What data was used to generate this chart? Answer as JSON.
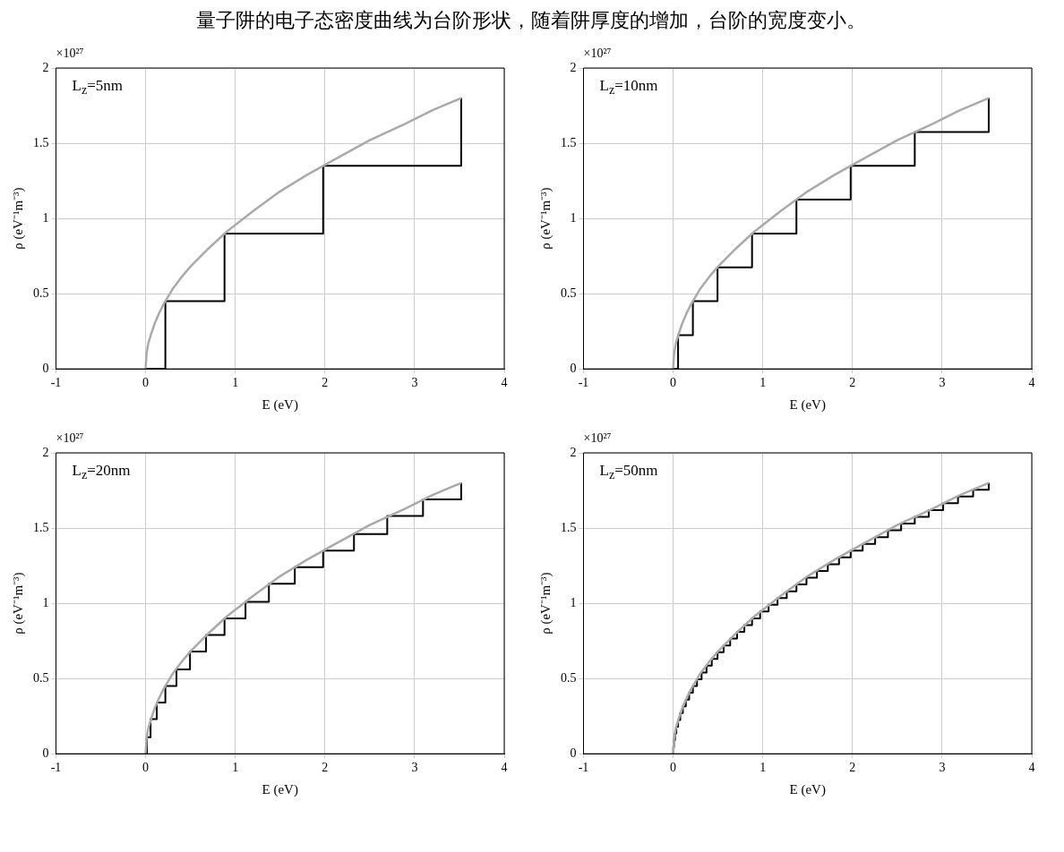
{
  "chart_data": [
    {
      "type": "line",
      "title": "量子阱的电子态密度曲线为台阶形状，随着阱厚度的增加，台阶的宽度变小。",
      "xlabel": "E (eV)",
      "ylabel": "ρ (eV⁻¹m⁻³)",
      "annotations": [
        "×10²⁷",
        "L$_{z}$=5nm"
      ],
      "xlim": [
        -1,
        4
      ],
      "xticks": [
        -1,
        0,
        1,
        2,
        3,
        4
      ],
      "ylim": [
        0,
        2
      ],
      "yticks": [
        0,
        0.5,
        1,
        1.5,
        2
      ],
      "grid": true,
      "marker": "none",
      "series": [
        {
          "type": "line",
          "color": "#aaaaaa",
          "x": [
            0,
            0.01,
            0.03,
            0.06,
            0.1,
            0.15,
            0.2,
            0.3,
            0.4,
            0.5,
            0.7,
            0.9,
            1.2,
            1.5,
            1.8,
            2.1,
            2.5,
            2.9,
            3.2,
            3.52
          ],
          "values": [
            0,
            0.1,
            0.17,
            0.23,
            0.3,
            0.37,
            0.43,
            0.53,
            0.61,
            0.68,
            0.8,
            0.91,
            1.05,
            1.18,
            1.29,
            1.39,
            1.52,
            1.63,
            1.72,
            1.8
          ]
        },
        {
          "type": "step",
          "color": "#000000",
          "x": [
            0,
            0.22,
            0.88,
            1.98,
            3.52
          ],
          "values": [
            0,
            0.45,
            0.9,
            1.35,
            1.8
          ]
        }
      ]
    },
    {
      "type": "line",
      "xlabel": "E (eV)",
      "ylabel": "ρ (eV⁻¹m⁻³)",
      "annotations": [
        "×10²⁷",
        "L$_{z}$=10nm"
      ],
      "xlim": [
        -1,
        4
      ],
      "xticks": [
        -1,
        0,
        1,
        2,
        3,
        4
      ],
      "ylim": [
        0,
        2
      ],
      "yticks": [
        0,
        0.5,
        1,
        1.5,
        2
      ],
      "grid": true,
      "marker": "none",
      "series": [
        {
          "type": "line",
          "color": "#aaaaaa",
          "x": [
            0,
            0.01,
            0.03,
            0.06,
            0.1,
            0.15,
            0.2,
            0.3,
            0.4,
            0.5,
            0.7,
            0.9,
            1.2,
            1.5,
            1.8,
            2.1,
            2.5,
            2.9,
            3.2,
            3.52
          ],
          "values": [
            0,
            0.1,
            0.17,
            0.23,
            0.3,
            0.37,
            0.43,
            0.53,
            0.61,
            0.68,
            0.8,
            0.91,
            1.05,
            1.18,
            1.29,
            1.39,
            1.52,
            1.63,
            1.72,
            1.8
          ]
        },
        {
          "type": "step",
          "color": "#000000",
          "x": [
            0,
            0.055,
            0.22,
            0.495,
            0.88,
            1.375,
            1.98,
            2.695,
            3.52
          ],
          "values": [
            0,
            0.225,
            0.45,
            0.675,
            0.9,
            1.125,
            1.35,
            1.575,
            1.8
          ]
        }
      ]
    },
    {
      "type": "line",
      "xlabel": "E (eV)",
      "ylabel": "ρ (eV⁻¹m⁻³)",
      "annotations": [
        "×10²⁷",
        "L$_{z}$=20nm"
      ],
      "xlim": [
        -1,
        4
      ],
      "xticks": [
        -1,
        0,
        1,
        2,
        3,
        4
      ],
      "ylim": [
        0,
        2
      ],
      "yticks": [
        0,
        0.5,
        1,
        1.5,
        2
      ],
      "grid": true,
      "marker": "none",
      "series": [
        {
          "type": "line",
          "color": "#aaaaaa",
          "x": [
            0,
            0.01,
            0.03,
            0.06,
            0.1,
            0.15,
            0.2,
            0.3,
            0.4,
            0.5,
            0.7,
            0.9,
            1.2,
            1.5,
            1.8,
            2.1,
            2.5,
            2.9,
            3.2,
            3.52
          ],
          "values": [
            0,
            0.1,
            0.17,
            0.23,
            0.3,
            0.37,
            0.43,
            0.53,
            0.61,
            0.68,
            0.8,
            0.91,
            1.05,
            1.18,
            1.29,
            1.39,
            1.52,
            1.63,
            1.72,
            1.8
          ]
        },
        {
          "type": "step",
          "color": "#000000",
          "x": [
            0,
            0.014,
            0.055,
            0.124,
            0.22,
            0.344,
            0.495,
            0.674,
            0.88,
            1.114,
            1.375,
            1.664,
            1.98,
            2.324,
            2.695,
            3.094,
            3.52
          ],
          "values": [
            0,
            0.11,
            0.23,
            0.34,
            0.45,
            0.56,
            0.68,
            0.79,
            0.9,
            1.01,
            1.13,
            1.24,
            1.35,
            1.46,
            1.58,
            1.69,
            1.8
          ]
        }
      ]
    },
    {
      "type": "line",
      "xlabel": "E (eV)",
      "ylabel": "ρ (eV⁻¹m⁻³)",
      "annotations": [
        "×10²⁷",
        "L$_{z}$=50nm"
      ],
      "xlim": [
        -1,
        4
      ],
      "xticks": [
        -1,
        0,
        1,
        2,
        3,
        4
      ],
      "ylim": [
        0,
        2
      ],
      "yticks": [
        0,
        0.5,
        1,
        1.5,
        2
      ],
      "grid": true,
      "marker": "none",
      "series": [
        {
          "type": "line",
          "color": "#aaaaaa",
          "x": [
            0,
            0.01,
            0.03,
            0.06,
            0.1,
            0.15,
            0.2,
            0.3,
            0.4,
            0.5,
            0.7,
            0.9,
            1.2,
            1.5,
            1.8,
            2.1,
            2.5,
            2.9,
            3.2,
            3.52
          ],
          "values": [
            0,
            0.1,
            0.17,
            0.23,
            0.3,
            0.37,
            0.43,
            0.53,
            0.61,
            0.68,
            0.8,
            0.91,
            1.05,
            1.18,
            1.29,
            1.39,
            1.52,
            1.63,
            1.72,
            1.8
          ]
        },
        {
          "type": "step",
          "color": "#000000",
          "x": [
            0,
            0.002,
            0.009,
            0.02,
            0.035,
            0.055,
            0.079,
            0.108,
            0.141,
            0.178,
            0.22,
            0.266,
            0.317,
            0.372,
            0.431,
            0.495,
            0.563,
            0.636,
            0.713,
            0.794,
            0.88,
            0.97,
            1.065,
            1.164,
            1.267,
            1.375,
            1.487,
            1.604,
            1.725,
            1.85,
            1.98,
            2.114,
            2.253,
            2.396,
            2.543,
            2.695,
            2.851,
            3.012,
            3.177,
            3.346,
            3.52
          ],
          "values": [
            0,
            0.045,
            0.09,
            0.135,
            0.18,
            0.225,
            0.27,
            0.315,
            0.36,
            0.405,
            0.45,
            0.495,
            0.54,
            0.585,
            0.63,
            0.675,
            0.72,
            0.765,
            0.81,
            0.855,
            0.9,
            0.945,
            0.99,
            1.035,
            1.08,
            1.125,
            1.17,
            1.215,
            1.26,
            1.305,
            1.35,
            1.395,
            1.44,
            1.485,
            1.53,
            1.575,
            1.62,
            1.665,
            1.71,
            1.755,
            1.8
          ]
        }
      ]
    }
  ]
}
